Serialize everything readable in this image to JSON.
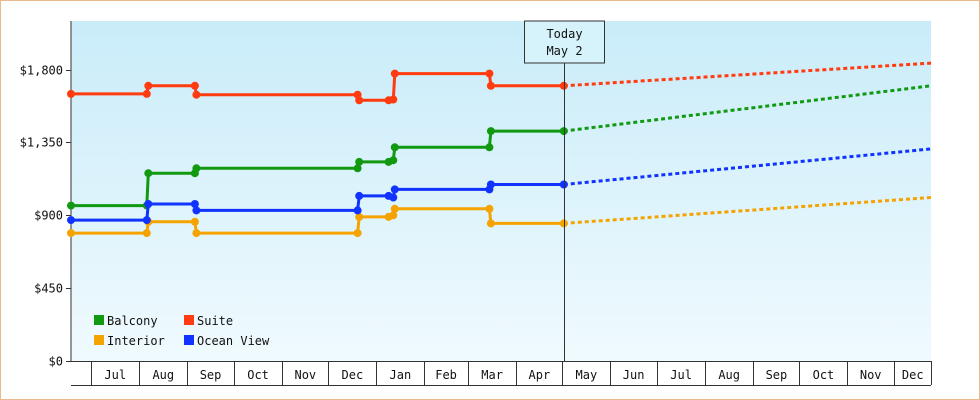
{
  "chart_data": {
    "type": "line",
    "step": true,
    "x_axis_type": "date",
    "y_axis": {
      "min": 0,
      "max": 2100,
      "ticks": [
        0,
        450,
        900,
        1350,
        1800
      ],
      "tick_labels": [
        "$0",
        "$450",
        "$900",
        "$1,350",
        "$1,800"
      ]
    },
    "x_axis": {
      "start": "2014-06-18",
      "end": "2015-12-31",
      "month_labels": [
        {
          "label": "Jul",
          "date": "2014-07-01"
        },
        {
          "label": "Aug",
          "date": "2014-08-01"
        },
        {
          "label": "Sep",
          "date": "2014-09-01"
        },
        {
          "label": "Oct",
          "date": "2014-10-01"
        },
        {
          "label": "Nov",
          "date": "2014-11-01"
        },
        {
          "label": "Dec",
          "date": "2014-12-01"
        },
        {
          "label": "Jan",
          "date": "2015-01-01"
        },
        {
          "label": "Feb",
          "date": "2015-02-01"
        },
        {
          "label": "Mar",
          "date": "2015-03-01"
        },
        {
          "label": "Apr",
          "date": "2015-04-01"
        },
        {
          "label": "May",
          "date": "2015-05-01"
        },
        {
          "label": "Jun",
          "date": "2015-06-01"
        },
        {
          "label": "Jul",
          "date": "2015-07-01"
        },
        {
          "label": "Aug",
          "date": "2015-08-01"
        },
        {
          "label": "Sep",
          "date": "2015-09-01"
        },
        {
          "label": "Oct",
          "date": "2015-10-01"
        },
        {
          "label": "Nov",
          "date": "2015-11-01"
        },
        {
          "label": "Dec",
          "date": "2015-12-01"
        }
      ]
    },
    "today": {
      "line1": "Today",
      "line2": "May 2",
      "date": "2015-05-02"
    },
    "background": {
      "top": "#c9ecf9",
      "bottom": "#f0fafe"
    },
    "series": [
      {
        "name": "Balcony",
        "color": "#119911",
        "points": [
          [
            "2014-06-18",
            960
          ],
          [
            "2014-08-06",
            960
          ],
          [
            "2014-08-07",
            1160
          ],
          [
            "2014-09-06",
            1160
          ],
          [
            "2014-09-07",
            1190
          ],
          [
            "2014-12-20",
            1190
          ],
          [
            "2014-12-21",
            1230
          ],
          [
            "2015-01-09",
            1230
          ],
          [
            "2015-01-12",
            1240
          ],
          [
            "2015-01-13",
            1320
          ],
          [
            "2015-03-15",
            1320
          ],
          [
            "2015-03-16",
            1420
          ],
          [
            "2015-05-02",
            1420
          ]
        ],
        "forecast": [
          [
            "2015-05-02",
            1420
          ],
          [
            "2015-12-31",
            1700
          ]
        ]
      },
      {
        "name": "Suite",
        "color": "#ff3b0f",
        "points": [
          [
            "2014-06-18",
            1650
          ],
          [
            "2014-08-06",
            1650
          ],
          [
            "2014-08-07",
            1700
          ],
          [
            "2014-09-06",
            1700
          ],
          [
            "2014-09-07",
            1645
          ],
          [
            "2014-12-20",
            1645
          ],
          [
            "2014-12-21",
            1610
          ],
          [
            "2015-01-09",
            1610
          ],
          [
            "2015-01-12",
            1615
          ],
          [
            "2015-01-13",
            1775
          ],
          [
            "2015-03-15",
            1775
          ],
          [
            "2015-03-16",
            1700
          ],
          [
            "2015-05-02",
            1700
          ]
        ],
        "forecast": [
          [
            "2015-05-02",
            1700
          ],
          [
            "2015-12-31",
            1840
          ]
        ]
      },
      {
        "name": "Interior",
        "color": "#f5a300",
        "points": [
          [
            "2014-06-18",
            790
          ],
          [
            "2014-08-06",
            790
          ],
          [
            "2014-08-07",
            860
          ],
          [
            "2014-09-06",
            860
          ],
          [
            "2014-09-07",
            790
          ],
          [
            "2014-12-20",
            790
          ],
          [
            "2014-12-21",
            890
          ],
          [
            "2015-01-09",
            890
          ],
          [
            "2015-01-12",
            900
          ],
          [
            "2015-01-13",
            940
          ],
          [
            "2015-03-15",
            940
          ],
          [
            "2015-03-16",
            850
          ],
          [
            "2015-05-02",
            850
          ]
        ],
        "forecast": [
          [
            "2015-05-02",
            850
          ],
          [
            "2015-12-31",
            1010
          ]
        ]
      },
      {
        "name": "Ocean View",
        "color": "#1033ff",
        "points": [
          [
            "2014-06-18",
            870
          ],
          [
            "2014-08-06",
            870
          ],
          [
            "2014-08-07",
            970
          ],
          [
            "2014-09-06",
            970
          ],
          [
            "2014-09-07",
            930
          ],
          [
            "2014-12-20",
            930
          ],
          [
            "2014-12-21",
            1020
          ],
          [
            "2015-01-09",
            1020
          ],
          [
            "2015-01-12",
            1010
          ],
          [
            "2015-01-13",
            1060
          ],
          [
            "2015-03-15",
            1060
          ],
          [
            "2015-03-16",
            1090
          ],
          [
            "2015-05-02",
            1090
          ]
        ],
        "forecast": [
          [
            "2015-05-02",
            1090
          ],
          [
            "2015-12-31",
            1310
          ]
        ]
      }
    ],
    "legend": {
      "placement": "bottom-left",
      "items": [
        "Balcony",
        "Suite",
        "Interior",
        "Ocean View"
      ]
    }
  }
}
